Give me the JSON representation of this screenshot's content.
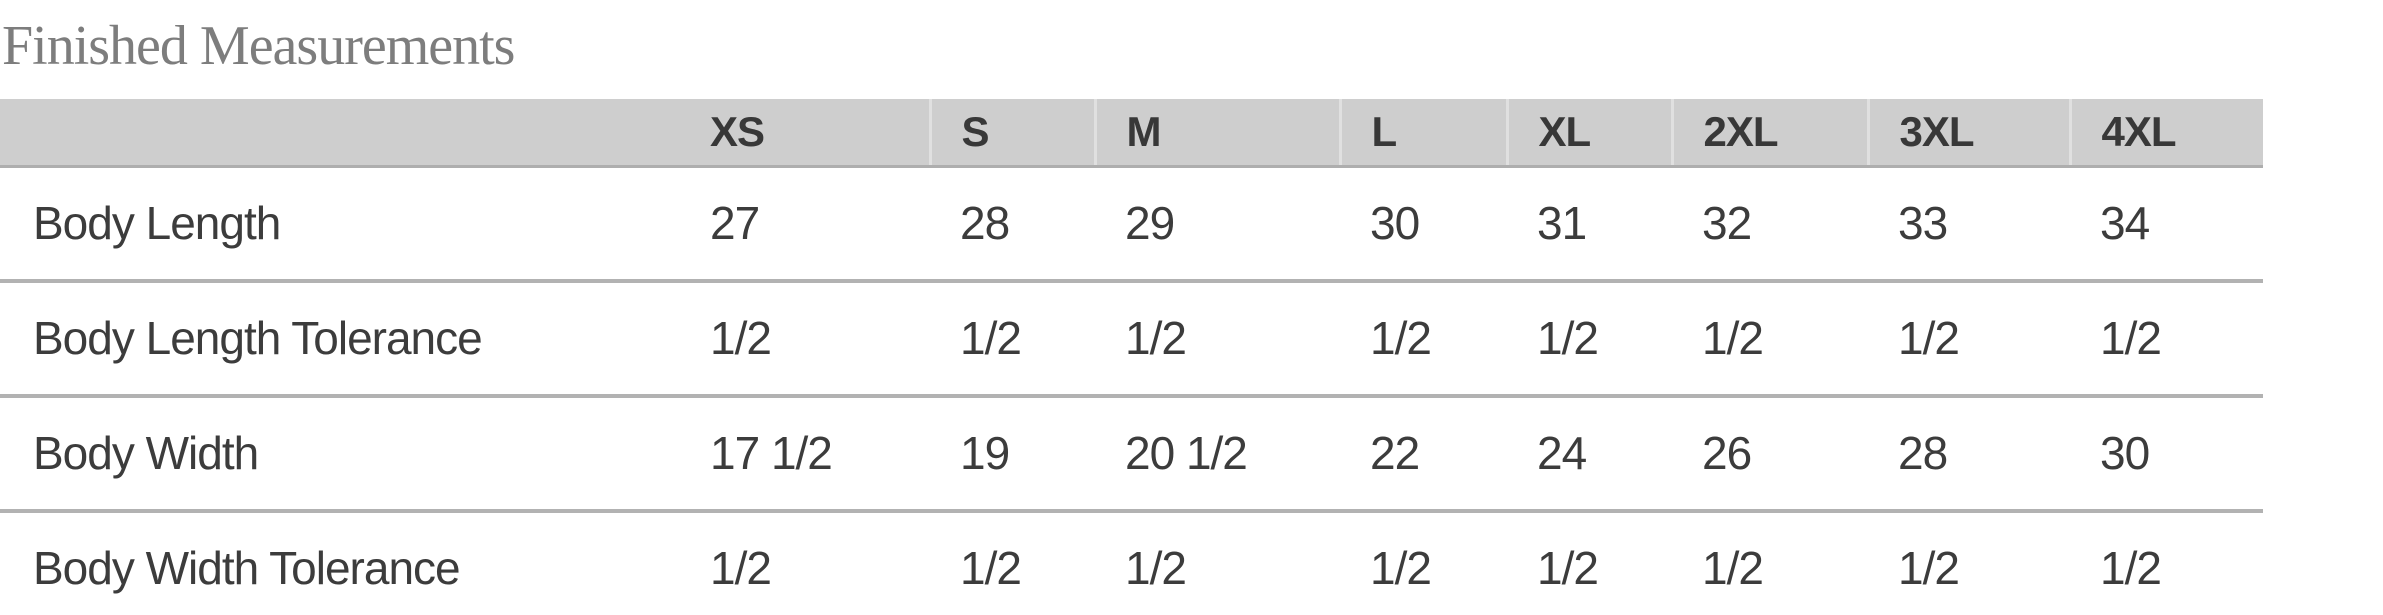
{
  "section": {
    "title": "Finished Measurements"
  },
  "table": {
    "columns": [
      "",
      "XS",
      "S",
      "M",
      "L",
      "XL",
      "2XL",
      "3XL",
      "4XL"
    ],
    "rows": [
      {
        "label": "Body Length",
        "values": [
          "27",
          "28",
          "29",
          "30",
          "31",
          "32",
          "33",
          "34"
        ]
      },
      {
        "label": "Body Length Tolerance",
        "values": [
          "1/2",
          "1/2",
          "1/2",
          "1/2",
          "1/2",
          "1/2",
          "1/2",
          "1/2"
        ]
      },
      {
        "label": "Body Width",
        "values": [
          "17 1/2",
          "19",
          "20 1/2",
          "22",
          "24",
          "26",
          "28",
          "30"
        ]
      },
      {
        "label": "Body Width Tolerance",
        "values": [
          "1/2",
          "1/2",
          "1/2",
          "1/2",
          "1/2",
          "1/2",
          "1/2",
          "1/2"
        ]
      }
    ]
  },
  "colors": {
    "header_background": "#cecece",
    "header_text": "#383838",
    "body_text": "#3c3c3c",
    "row_divider": "#b2b2b2",
    "header_cell_separator": "#e0e0e0",
    "title_text": "#7d7d7d",
    "page_background": "#ffffff"
  },
  "chart_data": {
    "type": "table",
    "title": "Finished Measurements",
    "columns": [
      "XS",
      "S",
      "M",
      "L",
      "XL",
      "2XL",
      "3XL",
      "4XL"
    ],
    "rows": [
      {
        "name": "Body Length",
        "values": [
          27,
          28,
          29,
          30,
          31,
          32,
          33,
          34
        ]
      },
      {
        "name": "Body Length Tolerance",
        "values": [
          0.5,
          0.5,
          0.5,
          0.5,
          0.5,
          0.5,
          0.5,
          0.5
        ]
      },
      {
        "name": "Body Width",
        "values": [
          17.5,
          19,
          20.5,
          22,
          24,
          26,
          28,
          30
        ]
      },
      {
        "name": "Body Width Tolerance",
        "values": [
          0.5,
          0.5,
          0.5,
          0.5,
          0.5,
          0.5,
          0.5,
          0.5
        ]
      }
    ]
  }
}
